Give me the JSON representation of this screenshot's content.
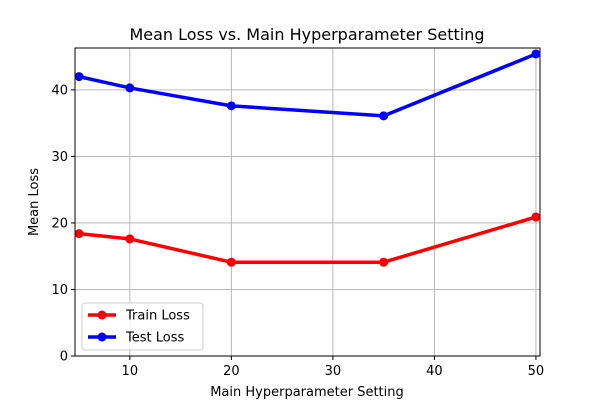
{
  "chart_data": {
    "type": "line",
    "title": "Mean Loss vs. Main Hyperparameter Setting",
    "xlabel": "Main Hyperparameter Setting",
    "ylabel": "Mean Loss",
    "x": [
      5,
      10,
      20,
      35,
      50
    ],
    "xlim": [
      4.6,
      50.4
    ],
    "ylim": [
      0,
      46.3
    ],
    "xticks": [
      10,
      20,
      30,
      40,
      50
    ],
    "yticks": [
      0,
      10,
      20,
      30,
      40
    ],
    "grid": true,
    "legend_position": "lower-left",
    "series": [
      {
        "name": "Train Loss",
        "color": "#ff0000",
        "values": [
          18.4,
          17.6,
          14.1,
          14.1,
          20.9
        ]
      },
      {
        "name": "Test Loss",
        "color": "#0000ff",
        "values": [
          42.0,
          40.3,
          37.6,
          36.1,
          45.4
        ]
      }
    ]
  }
}
